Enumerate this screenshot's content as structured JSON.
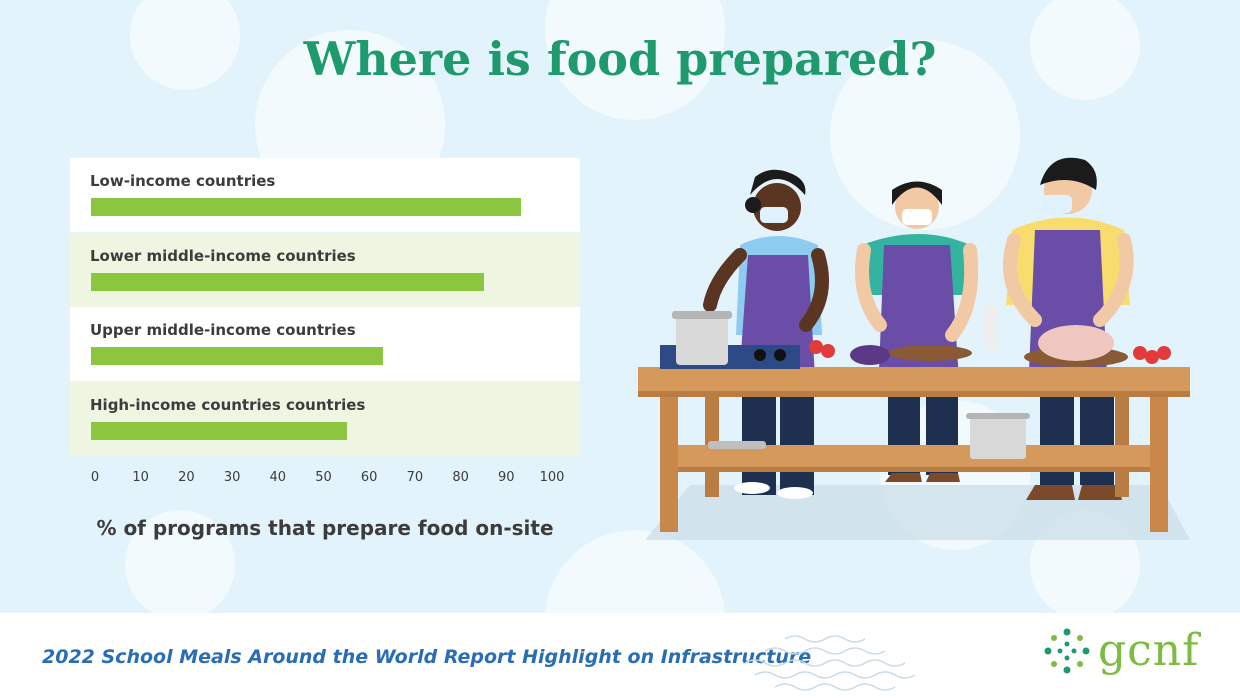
{
  "title": "Where is food prepared?",
  "chart_data": {
    "type": "bar",
    "orientation": "horizontal",
    "categories": [
      "Low-income countries",
      "Lower middle-income countries",
      "Upper middle-income countries",
      "High-income countries countries"
    ],
    "values": [
      94,
      86,
      64,
      56
    ],
    "xlabel": "% of programs that prepare food on-site",
    "xlim": [
      0,
      100
    ],
    "xticks": [
      "0",
      "10",
      "20",
      "30",
      "40",
      "50",
      "60",
      "70",
      "80",
      "90",
      "100"
    ],
    "bar_color": "#8cc63f",
    "row_colors": [
      "#ffffff",
      "#eef6e2",
      "#ffffff",
      "#eef6e2"
    ]
  },
  "illustration": {
    "name": "three-cooks-at-table"
  },
  "footer": {
    "text": "2022 School Meals Around the World Report Highlight on Infrastructure"
  },
  "logo": {
    "text": "gcnf",
    "color": "#7dbb42",
    "dot_color": "#1e9a6d"
  },
  "colors": {
    "title": "#1e9a6d",
    "background": "#e3f3fb",
    "footer_text": "#2a6db3"
  }
}
